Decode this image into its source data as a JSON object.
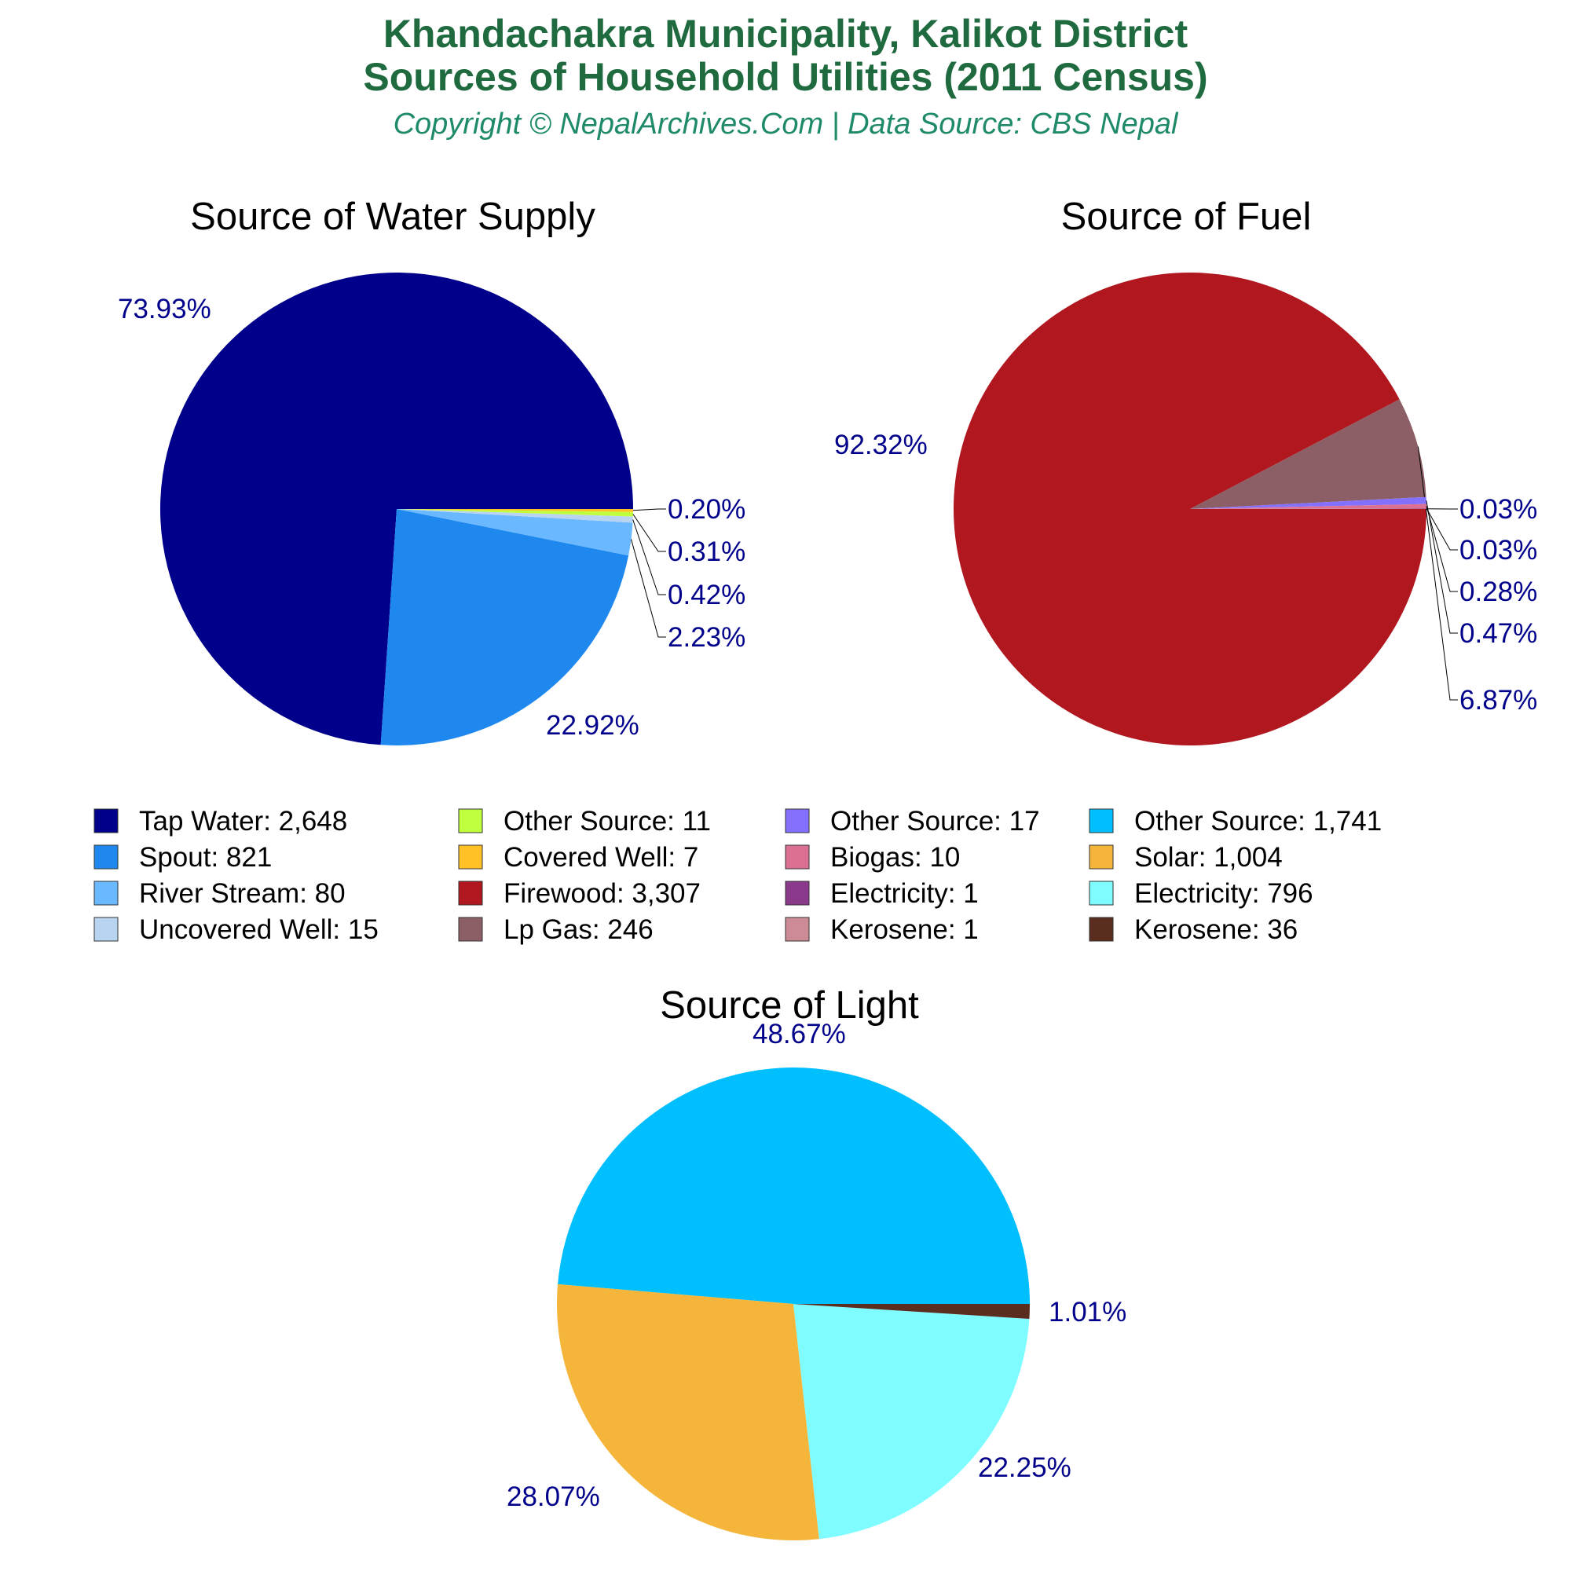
{
  "header": {
    "title_line1": "Khandachakra Municipality, Kalikot District",
    "title_line2": "Sources of Household Utilities (2011 Census)",
    "subtitle": "Copyright © NepalArchives.Com | Data Source: CBS Nepal"
  },
  "chart_data": [
    {
      "type": "pie",
      "title": "Source of Water Supply",
      "slices": [
        {
          "label": "Tap Water",
          "value": 2648,
          "percent_label": "73.93%",
          "color": "#00008b"
        },
        {
          "label": "Spout",
          "value": 821,
          "percent_label": "22.92%",
          "color": "#1e88ee"
        },
        {
          "label": "River Stream",
          "value": 80,
          "percent_label": "2.23%",
          "color": "#6ab8ff"
        },
        {
          "label": "Uncovered Well",
          "value": 15,
          "percent_label": "0.42%",
          "color": "#b8d4f0"
        },
        {
          "label": "Other Source",
          "value": 11,
          "percent_label": "0.31%",
          "color": "#c0ff3e"
        },
        {
          "label": "Covered Well",
          "value": 7,
          "percent_label": "0.20%",
          "color": "#ffc125"
        }
      ]
    },
    {
      "type": "pie",
      "title": "Source of Fuel",
      "slices": [
        {
          "label": "Firewood",
          "value": 3307,
          "percent_label": "92.32%",
          "color": "#b0171f"
        },
        {
          "label": "Lp Gas",
          "value": 246,
          "percent_label": "6.87%",
          "color": "#8b5f65"
        },
        {
          "label": "Other Source",
          "value": 17,
          "percent_label": "0.47%",
          "color": "#8470ff"
        },
        {
          "label": "Biogas",
          "value": 10,
          "percent_label": "0.28%",
          "color": "#db7093"
        },
        {
          "label": "Electricity",
          "value": 1,
          "percent_label": "0.03%",
          "color": "#8b3a8b"
        },
        {
          "label": "Kerosene",
          "value": 1,
          "percent_label": "0.03%",
          "color": "#cd8c95"
        }
      ]
    },
    {
      "type": "pie",
      "title": "Source of Light",
      "slices": [
        {
          "label": "Other Source",
          "value": 1741,
          "percent_label": "48.67%",
          "color": "#00bfff"
        },
        {
          "label": "Solar",
          "value": 1004,
          "percent_label": "28.07%",
          "color": "#f5b53a"
        },
        {
          "label": "Electricity",
          "value": 796,
          "percent_label": "22.25%",
          "color": "#7ffcff"
        },
        {
          "label": "Kerosene",
          "value": 36,
          "percent_label": "1.01%",
          "color": "#5a2d1e"
        }
      ]
    }
  ],
  "legend": [
    {
      "text": "Tap Water: 2,648",
      "color": "#00008b"
    },
    {
      "text": "Spout: 821",
      "color": "#1e88ee"
    },
    {
      "text": "River Stream: 80",
      "color": "#6ab8ff"
    },
    {
      "text": "Uncovered Well: 15",
      "color": "#b8d4f0"
    },
    {
      "text": "Other Source: 11",
      "color": "#c0ff3e"
    },
    {
      "text": "Covered Well: 7",
      "color": "#ffc125"
    },
    {
      "text": "Firewood: 3,307",
      "color": "#b0171f"
    },
    {
      "text": "Lp Gas: 246",
      "color": "#8b5f65"
    },
    {
      "text": "Other Source: 17",
      "color": "#8470ff"
    },
    {
      "text": "Biogas: 10",
      "color": "#db7093"
    },
    {
      "text": "Electricity: 1",
      "color": "#8b3a8b"
    },
    {
      "text": "Kerosene: 1",
      "color": "#cd8c95"
    },
    {
      "text": "Other Source: 1,741",
      "color": "#00bfff"
    },
    {
      "text": "Solar: 1,004",
      "color": "#f5b53a"
    },
    {
      "text": "Electricity: 796",
      "color": "#7ffcff"
    },
    {
      "text": "Kerosene: 36",
      "color": "#5a2d1e"
    }
  ]
}
